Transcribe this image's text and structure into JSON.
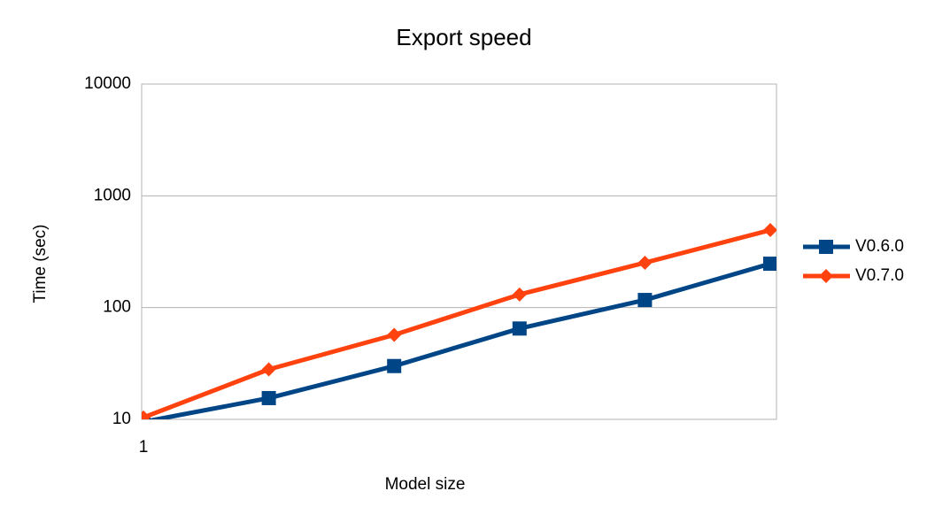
{
  "chart_data": {
    "type": "line",
    "title": "Export speed",
    "x_label": "Model size",
    "y_label": "Time (sec)",
    "x": [
      1,
      2,
      3,
      4,
      5,
      6
    ],
    "xlim": [
      1,
      6
    ],
    "xticks": [
      1
    ],
    "ylim": [
      10,
      10000
    ],
    "yticks": [
      10,
      100,
      1000,
      10000
    ],
    "y_log": true,
    "grid": true,
    "legend": "right",
    "series": [
      {
        "name": "V0.6.0",
        "color": "#004586",
        "marker": "square",
        "values": [
          9.5,
          15.5,
          30,
          65,
          117,
          247
        ]
      },
      {
        "name": "V0.7.0",
        "color": "#ff420e",
        "marker": "diamond",
        "values": [
          10.4,
          28,
          57,
          131,
          252,
          494
        ]
      }
    ]
  }
}
